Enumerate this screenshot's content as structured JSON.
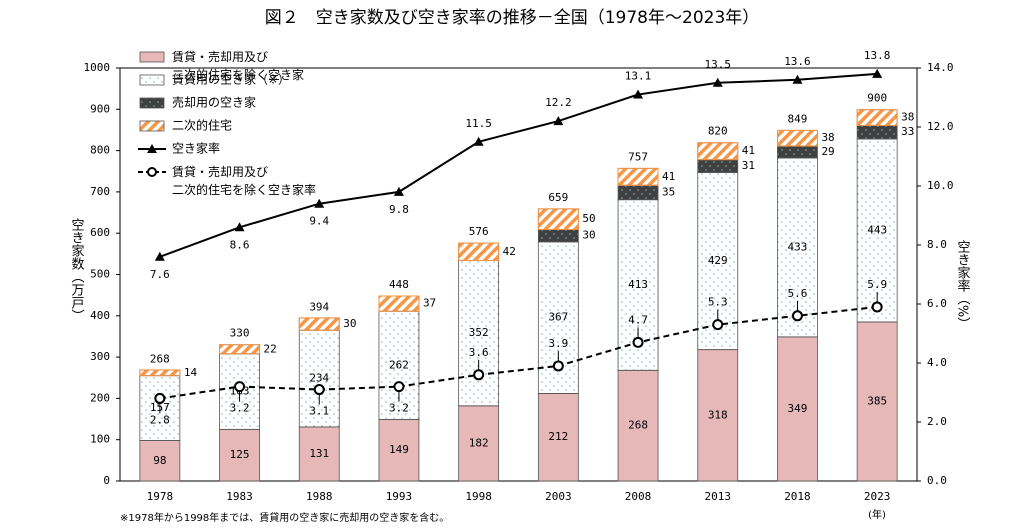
{
  "chart_data": {
    "type": "bar",
    "title": "図２　空き家数及び空き家率の推移－全国（1978年～2023年）",
    "ylabel": "空き家数（万戸）",
    "y2label": "空き家率（%）",
    "xunit": "(年)",
    "footnote": "※1978年から1998年までは、賃貸用の空き家に売却用の空き家を含む。",
    "categories": [
      "1978",
      "1983",
      "1988",
      "1993",
      "1998",
      "2003",
      "2008",
      "2013",
      "2018",
      "2023"
    ],
    "series": [
      {
        "name": "賃貸・売却用及び二次的住宅を除く空き家",
        "type": "bar",
        "color": "#e6b9b8",
        "pattern": "solid",
        "label_position": "inside",
        "values": [
          98,
          125,
          131,
          149,
          182,
          212,
          268,
          318,
          349,
          385
        ]
      },
      {
        "name": "賃貸用の空き家（※）",
        "type": "bar",
        "color": "#ffffff",
        "pattern": "dots",
        "label_position": "inside",
        "values": [
          157,
          183,
          234,
          262,
          352,
          367,
          413,
          429,
          433,
          443
        ]
      },
      {
        "name": "売却用の空き家",
        "type": "bar",
        "color": "#404040",
        "pattern": "dots",
        "label_position": "right",
        "values": [
          null,
          null,
          null,
          null,
          null,
          30,
          35,
          31,
          29,
          33
        ]
      },
      {
        "name": "二次的住宅",
        "type": "bar",
        "color": "#f79646",
        "pattern": "hatch",
        "label_position": "right",
        "values": [
          14,
          22,
          30,
          37,
          42,
          50,
          41,
          41,
          38,
          38
        ]
      },
      {
        "name": "空き家率",
        "type": "line",
        "axis": "y2",
        "color": "#000000",
        "linestyle": "solid",
        "marker": "triangle",
        "values": [
          7.6,
          8.6,
          9.4,
          9.8,
          11.5,
          12.2,
          13.1,
          13.5,
          13.6,
          13.8
        ]
      },
      {
        "name": "賃貸・売却用及び二次的住宅を除く空き家率",
        "type": "line",
        "axis": "y2",
        "color": "#000000",
        "linestyle": "dashed",
        "marker": "circle",
        "values": [
          2.8,
          3.2,
          3.1,
          3.2,
          3.6,
          3.9,
          4.7,
          5.3,
          5.6,
          5.9
        ]
      }
    ],
    "totals": [
      268,
      330,
      394,
      448,
      576,
      659,
      757,
      820,
      849,
      900
    ],
    "ylim": [
      0,
      1000
    ],
    "yticks": [
      0,
      100,
      200,
      300,
      400,
      500,
      600,
      700,
      800,
      900,
      1000
    ],
    "y2lim": [
      0,
      14
    ],
    "y2ticks": [
      {
        "value": 0,
        "label": "0.0"
      },
      {
        "value": 2,
        "label": "2.0"
      },
      {
        "value": 4,
        "label": "4.0"
      },
      {
        "value": 6,
        "label": "6.0"
      },
      {
        "value": 8,
        "label": "8.0"
      },
      {
        "value": 10,
        "label": "10.0"
      },
      {
        "value": 12,
        "label": "12.0"
      },
      {
        "value": 14,
        "label": "14.0"
      }
    ]
  }
}
